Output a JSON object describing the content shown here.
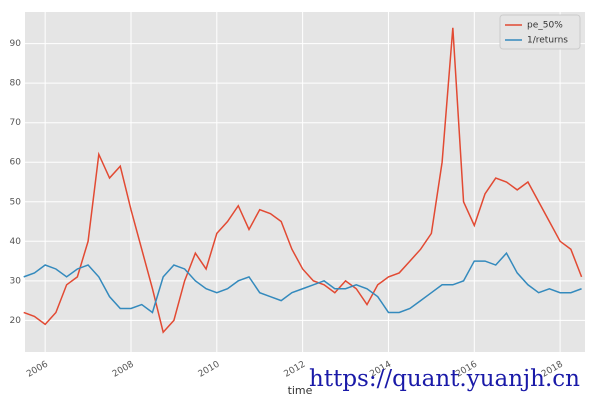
{
  "chart_data": {
    "type": "line",
    "xlabel": "time",
    "watermark": "https://quant.yuanjh.cn",
    "x": [
      2005.5,
      2005.75,
      2006,
      2006.25,
      2006.5,
      2006.75,
      2007,
      2007.25,
      2007.5,
      2007.75,
      2008,
      2008.25,
      2008.5,
      2008.75,
      2009,
      2009.25,
      2009.5,
      2009.75,
      2010,
      2010.25,
      2010.5,
      2010.75,
      2011,
      2011.25,
      2011.5,
      2011.75,
      2012,
      2012.25,
      2012.5,
      2012.75,
      2013,
      2013.25,
      2013.5,
      2013.75,
      2014,
      2014.25,
      2014.5,
      2014.75,
      2015,
      2015.25,
      2015.5,
      2015.75,
      2016,
      2016.25,
      2016.5,
      2016.75,
      2017,
      2017.25,
      2017.5,
      2017.75,
      2018,
      2018.25,
      2018.5
    ],
    "series": [
      {
        "name": "pe_50%",
        "color": "#E24A33",
        "values": [
          22,
          21,
          19,
          22,
          29,
          31,
          40,
          62,
          56,
          59,
          48,
          38,
          28,
          17,
          20,
          30,
          37,
          33,
          42,
          45,
          49,
          43,
          48,
          47,
          45,
          38,
          33,
          30,
          29,
          27,
          30,
          28,
          24,
          29,
          31,
          32,
          35,
          38,
          42,
          60,
          94,
          50,
          44,
          52,
          56,
          55,
          53,
          55,
          50,
          45,
          40,
          38,
          31
        ]
      },
      {
        "name": "1/returns",
        "color": "#348ABD",
        "values": [
          31,
          32,
          34,
          33,
          31,
          33,
          34,
          31,
          26,
          23,
          23,
          24,
          22,
          31,
          34,
          33,
          30,
          28,
          27,
          28,
          30,
          31,
          27,
          26,
          25,
          27,
          28,
          29,
          30,
          28,
          28,
          29,
          28,
          26,
          22,
          22,
          23,
          25,
          27,
          29,
          29,
          30,
          35,
          35,
          34,
          37,
          32,
          29,
          27,
          28,
          27,
          27,
          28
        ]
      }
    ],
    "xlim": [
      2005.53,
      2018.58
    ],
    "xticks": [
      2006,
      2008,
      2010,
      2012,
      2014,
      2016,
      2018
    ],
    "ylim": [
      12,
      98
    ],
    "yticks": [
      20,
      30,
      40,
      50,
      60,
      70,
      80,
      90
    ],
    "grid": true,
    "legend": "upper right"
  }
}
